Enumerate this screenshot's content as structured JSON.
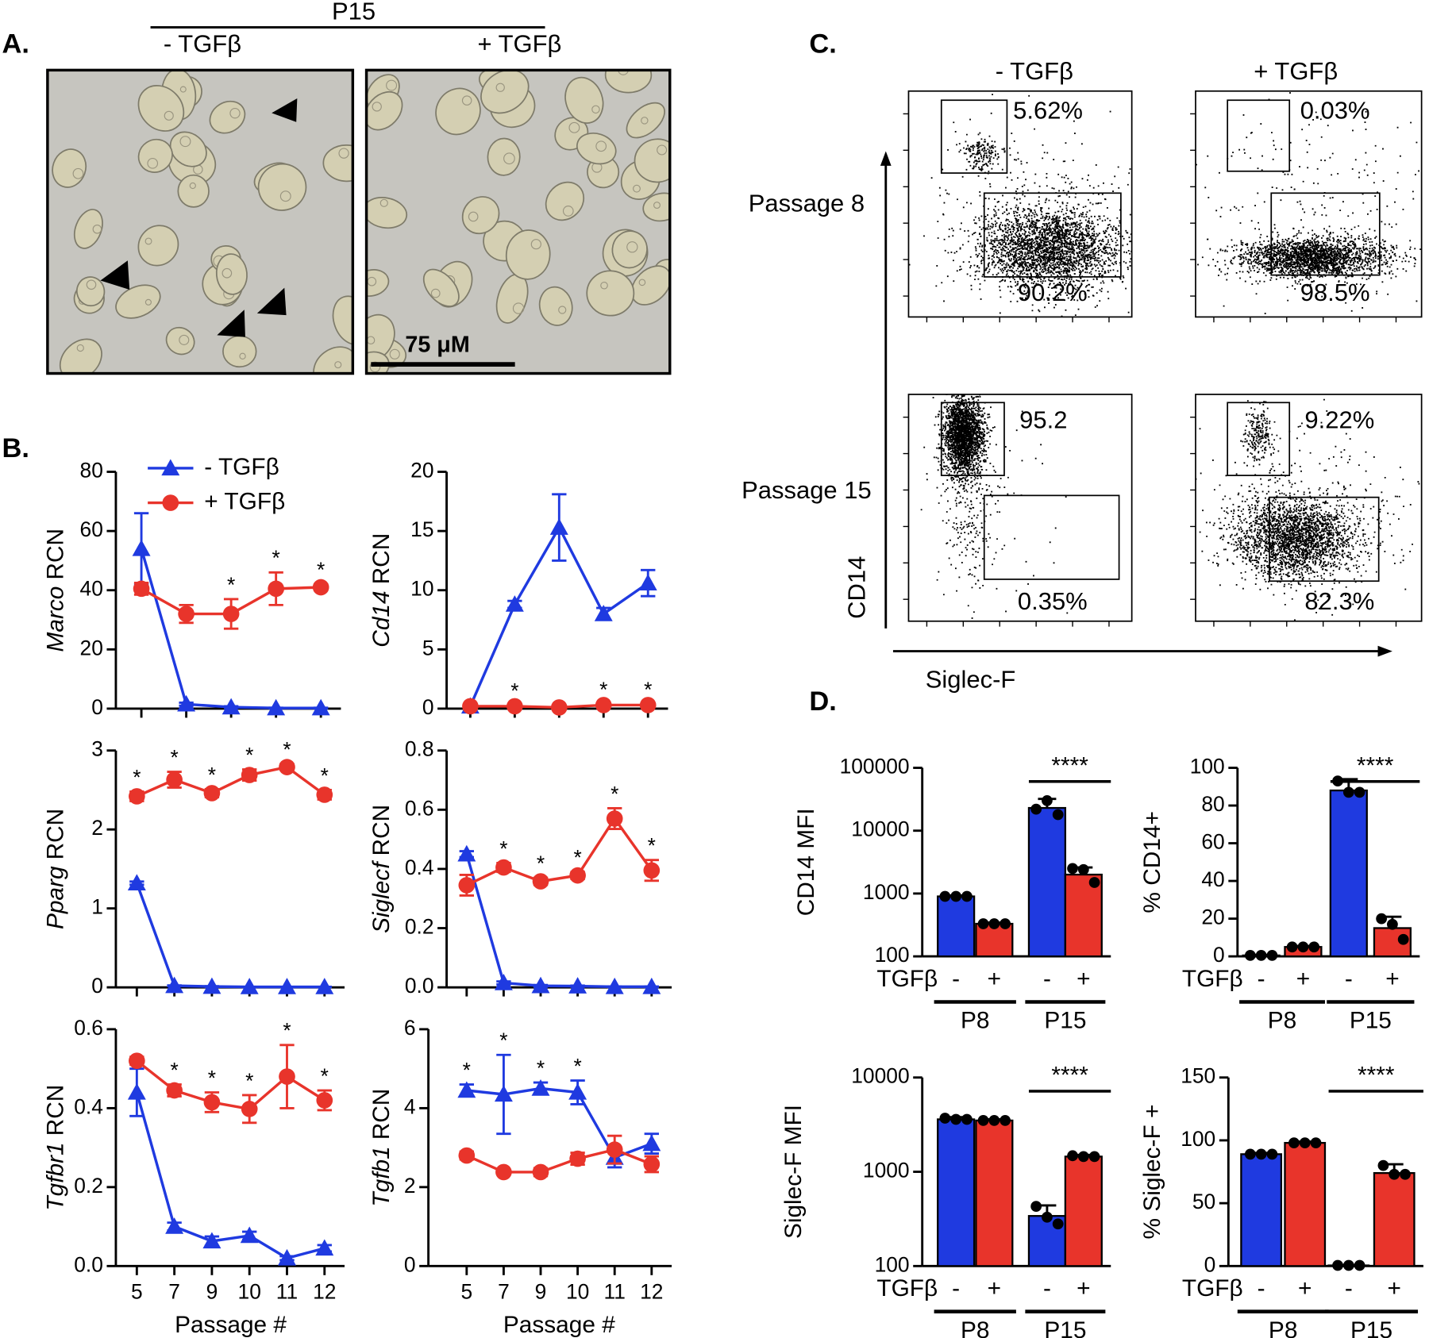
{
  "panel_labels": [
    "A.",
    "B.",
    "C.",
    "D."
  ],
  "panel_a": {
    "header": "P15",
    "columns": [
      "- TGFβ",
      "+ TGFβ"
    ],
    "scale_bar": "75 μM"
  },
  "panel_c": {
    "columns": [
      "- TGFβ",
      "+ TGFβ"
    ],
    "rows": [
      "Passage 8",
      "Passage 15"
    ],
    "y_axis": "CD14",
    "x_axis": "Siglec-F",
    "gates": [
      [
        "5.62%",
        "90.2%"
      ],
      [
        "0.03%",
        "98.5%"
      ],
      [
        "95.2",
        "0.35%"
      ],
      [
        "9.22%",
        "82.3%"
      ]
    ]
  },
  "chart_data": [
    {
      "type": "line",
      "ylabel_gene": "Marco",
      "ylabel": "RCN",
      "categories": [
        null,
        null,
        null,
        null,
        null
      ],
      "ylim": [
        0,
        80
      ],
      "yticks": [
        0,
        20,
        40,
        60,
        80
      ],
      "series": [
        {
          "name": "- TGFβ",
          "color": "#1f3ae0",
          "marker": "triangle",
          "values": [
            54,
            1.5,
            0.5,
            0.2,
            0.2
          ],
          "errors": [
            12,
            0.5,
            0.3,
            0.1,
            0.1
          ],
          "annotations": [
            null,
            null,
            null,
            null,
            null
          ]
        },
        {
          "name": "+ TGFβ",
          "color": "#e8342b",
          "marker": "circle",
          "values": [
            40.5,
            32,
            32,
            40.5,
            41
          ],
          "errors": [
            2,
            3,
            5,
            5.5,
            1
          ],
          "annotations": [
            null,
            null,
            "*",
            "*",
            "*"
          ]
        }
      ]
    },
    {
      "type": "line",
      "ylabel_gene": "Cd14",
      "ylabel": "RCN",
      "categories": [
        null,
        null,
        null,
        null,
        null
      ],
      "ylim": [
        0,
        20
      ],
      "yticks": [
        0,
        5,
        10,
        15,
        20
      ],
      "series": [
        {
          "color": "#1f3ae0",
          "marker": "triangle",
          "values": [
            0.2,
            8.8,
            15.3,
            8,
            10.6
          ],
          "errors": [
            0.1,
            0.3,
            2.8,
            0.5,
            1.1
          ],
          "annotations": [
            null,
            null,
            null,
            null,
            null
          ]
        },
        {
          "color": "#e8342b",
          "marker": "circle",
          "values": [
            0.2,
            0.2,
            0.1,
            0.3,
            0.3
          ],
          "errors": [
            0.1,
            0.1,
            0.1,
            0.1,
            0.1
          ],
          "annotations": [
            null,
            "*",
            null,
            "*",
            "*"
          ]
        }
      ]
    },
    {
      "type": "line",
      "ylabel_gene": "Pparg",
      "ylabel": "RCN",
      "categories": [
        null,
        null,
        null,
        null,
        null,
        null
      ],
      "ylim": [
        0,
        3
      ],
      "yticks": [
        0,
        1,
        2,
        3
      ],
      "series": [
        {
          "color": "#1f3ae0",
          "marker": "triangle",
          "values": [
            1.32,
            0.02,
            0.01,
            0.005,
            0.005,
            0.005
          ],
          "errors": [
            0.02,
            0.005,
            0.005,
            0.002,
            0.002,
            0.002
          ],
          "annotations": [
            null,
            null,
            null,
            null,
            null,
            null
          ]
        },
        {
          "color": "#e8342b",
          "marker": "circle",
          "values": [
            2.42,
            2.63,
            2.46,
            2.69,
            2.79,
            2.44
          ],
          "errors": [
            0.06,
            0.1,
            0.05,
            0.07,
            0.04,
            0.06
          ],
          "annotations": [
            "*",
            "*",
            "*",
            "*",
            "*",
            "*"
          ]
        }
      ]
    },
    {
      "type": "line",
      "ylabel_gene": "Siglecf",
      "ylabel": "RCN",
      "categories": [
        null,
        null,
        null,
        null,
        null,
        null
      ],
      "ylim": [
        0,
        0.8
      ],
      "yticks": [
        {
          "value": 0,
          "label": "0.0"
        },
        0.2,
        0.4,
        0.6,
        0.8
      ],
      "series": [
        {
          "color": "#1f3ae0",
          "marker": "triangle",
          "values": [
            0.45,
            0.015,
            0.005,
            0.004,
            0.002,
            0.002
          ],
          "errors": [
            0.01,
            0.005,
            0.003,
            0.002,
            0.001,
            0.001
          ],
          "annotations": [
            null,
            null,
            null,
            null,
            null,
            null
          ]
        },
        {
          "color": "#e8342b",
          "marker": "circle",
          "values": [
            0.345,
            0.405,
            0.358,
            0.378,
            0.57,
            0.395
          ],
          "errors": [
            0.035,
            0.015,
            0.012,
            0.012,
            0.035,
            0.035
          ],
          "annotations": [
            null,
            "*",
            "*",
            "*",
            "*",
            "*"
          ]
        }
      ]
    },
    {
      "type": "line",
      "ylabel_gene": "Tgfbr1",
      "ylabel": "RCN",
      "xlabel": "Passage #",
      "categories": [
        "5",
        "7",
        "9",
        "10",
        "11",
        "12"
      ],
      "ylim": [
        0,
        0.6
      ],
      "yticks": [
        {
          "value": 0,
          "label": "0.0"
        },
        0.2,
        0.4,
        0.6
      ],
      "series": [
        {
          "color": "#1f3ae0",
          "marker": "triangle",
          "values": [
            0.44,
            0.1,
            0.063,
            0.077,
            0.02,
            0.045
          ],
          "errors": [
            0.06,
            0.01,
            0.012,
            0.01,
            0.005,
            0.008
          ],
          "annotations": [
            null,
            null,
            null,
            null,
            null,
            null
          ]
        },
        {
          "color": "#e8342b",
          "marker": "circle",
          "values": [
            0.52,
            0.445,
            0.415,
            0.398,
            0.48,
            0.42
          ],
          "errors": [
            0.01,
            0.015,
            0.025,
            0.035,
            0.08,
            0.025
          ],
          "annotations": [
            null,
            "*",
            "*",
            "*",
            "*",
            "*"
          ]
        }
      ]
    },
    {
      "type": "line",
      "ylabel_gene": "Tgfb1",
      "ylabel": "RCN",
      "xlabel": "Passage #",
      "categories": [
        "5",
        "7",
        "9",
        "10",
        "11",
        "12"
      ],
      "ylim": [
        0,
        6
      ],
      "yticks": [
        0,
        2,
        4,
        6
      ],
      "series": [
        {
          "color": "#1f3ae0",
          "marker": "triangle",
          "values": [
            4.45,
            4.35,
            4.5,
            4.4,
            2.75,
            3.1
          ],
          "errors": [
            0.15,
            1.0,
            0.15,
            0.3,
            0.25,
            0.25
          ],
          "annotations": [
            "*",
            "*",
            "*",
            "*",
            null,
            null
          ]
        },
        {
          "color": "#e8342b",
          "marker": "circle",
          "values": [
            2.8,
            2.38,
            2.38,
            2.72,
            2.95,
            2.58
          ],
          "errors": [
            0.1,
            0.05,
            0.1,
            0.15,
            0.35,
            0.2
          ],
          "annotations": [
            null,
            null,
            null,
            null,
            null,
            null
          ]
        }
      ]
    },
    {
      "type": "bar",
      "ylabel": "CD14 MFI",
      "log_scale": true,
      "ylim": [
        100,
        100000
      ],
      "yticks": [
        100,
        1000,
        10000,
        100000
      ],
      "category_title": "TGFβ",
      "categories": [
        "-",
        "+",
        "-",
        "+"
      ],
      "groups": [
        "P8",
        "P15"
      ],
      "colors": [
        "#1f3ae0",
        "#e8342b",
        "#1f3ae0",
        "#e8342b"
      ],
      "values": [
        900,
        330,
        23000,
        2000
      ],
      "errors": [
        30,
        15,
        9000,
        600
      ],
      "points": [
        [
          900,
          900,
          900
        ],
        [
          330,
          330,
          330
        ],
        [
          22000,
          30000,
          18000
        ],
        [
          2500,
          2400,
          1500
        ]
      ],
      "significance": "****"
    },
    {
      "type": "bar",
      "ylabel": "% CD14+",
      "log_scale": false,
      "ylim": [
        0,
        100
      ],
      "yticks": [
        0,
        20,
        40,
        60,
        80,
        100
      ],
      "category_title": "TGFβ",
      "categories": [
        "-",
        "+",
        "-",
        "+"
      ],
      "groups": [
        "P8",
        "P15"
      ],
      "colors": [
        "#1f3ae0",
        "#e8342b",
        "#1f3ae0",
        "#e8342b"
      ],
      "values": [
        0.5,
        5,
        88,
        15
      ],
      "errors": [
        0.3,
        0.5,
        6,
        6
      ],
      "points": [
        [
          0.5,
          0.5,
          0.5
        ],
        [
          5,
          5,
          5
        ],
        [
          93,
          87,
          87
        ],
        [
          20,
          17,
          9
        ]
      ],
      "significance": "****"
    },
    {
      "type": "bar",
      "ylabel": "Siglec-F MFI",
      "log_scale": true,
      "ylim": [
        100,
        10000
      ],
      "yticks": [
        100,
        1000,
        10000
      ],
      "category_title": "TGFβ",
      "categories": [
        "-",
        "+",
        "-",
        "+"
      ],
      "groups": [
        "P8",
        "P15"
      ],
      "colors": [
        "#1f3ae0",
        "#e8342b",
        "#1f3ae0",
        "#e8342b"
      ],
      "values": [
        3600,
        3500,
        340,
        1450
      ],
      "errors": [
        200,
        100,
        100,
        60
      ],
      "points": [
        [
          3700,
          3600,
          3600
        ],
        [
          3500,
          3500,
          3500
        ],
        [
          430,
          330,
          280
        ],
        [
          1480,
          1450,
          1450
        ]
      ],
      "significance": "****"
    },
    {
      "type": "bar",
      "ylabel": "% Siglec-F +",
      "log_scale": false,
      "ylim": [
        0,
        150
      ],
      "yticks": [
        0,
        50,
        100,
        150
      ],
      "category_title": "TGFβ",
      "categories": [
        "-",
        "+",
        "-",
        "+"
      ],
      "groups": [
        "P8",
        "P15"
      ],
      "colors": [
        "#1f3ae0",
        "#e8342b",
        "#1f3ae0",
        "#e8342b"
      ],
      "values": [
        89,
        98,
        0.5,
        74
      ],
      "errors": [
        1,
        1,
        0.3,
        7
      ],
      "points": [
        [
          89,
          89,
          89
        ],
        [
          98,
          98,
          98
        ],
        [
          0.5,
          0.5,
          0.5
        ],
        [
          80,
          73,
          73
        ]
      ],
      "significance": "****"
    }
  ]
}
